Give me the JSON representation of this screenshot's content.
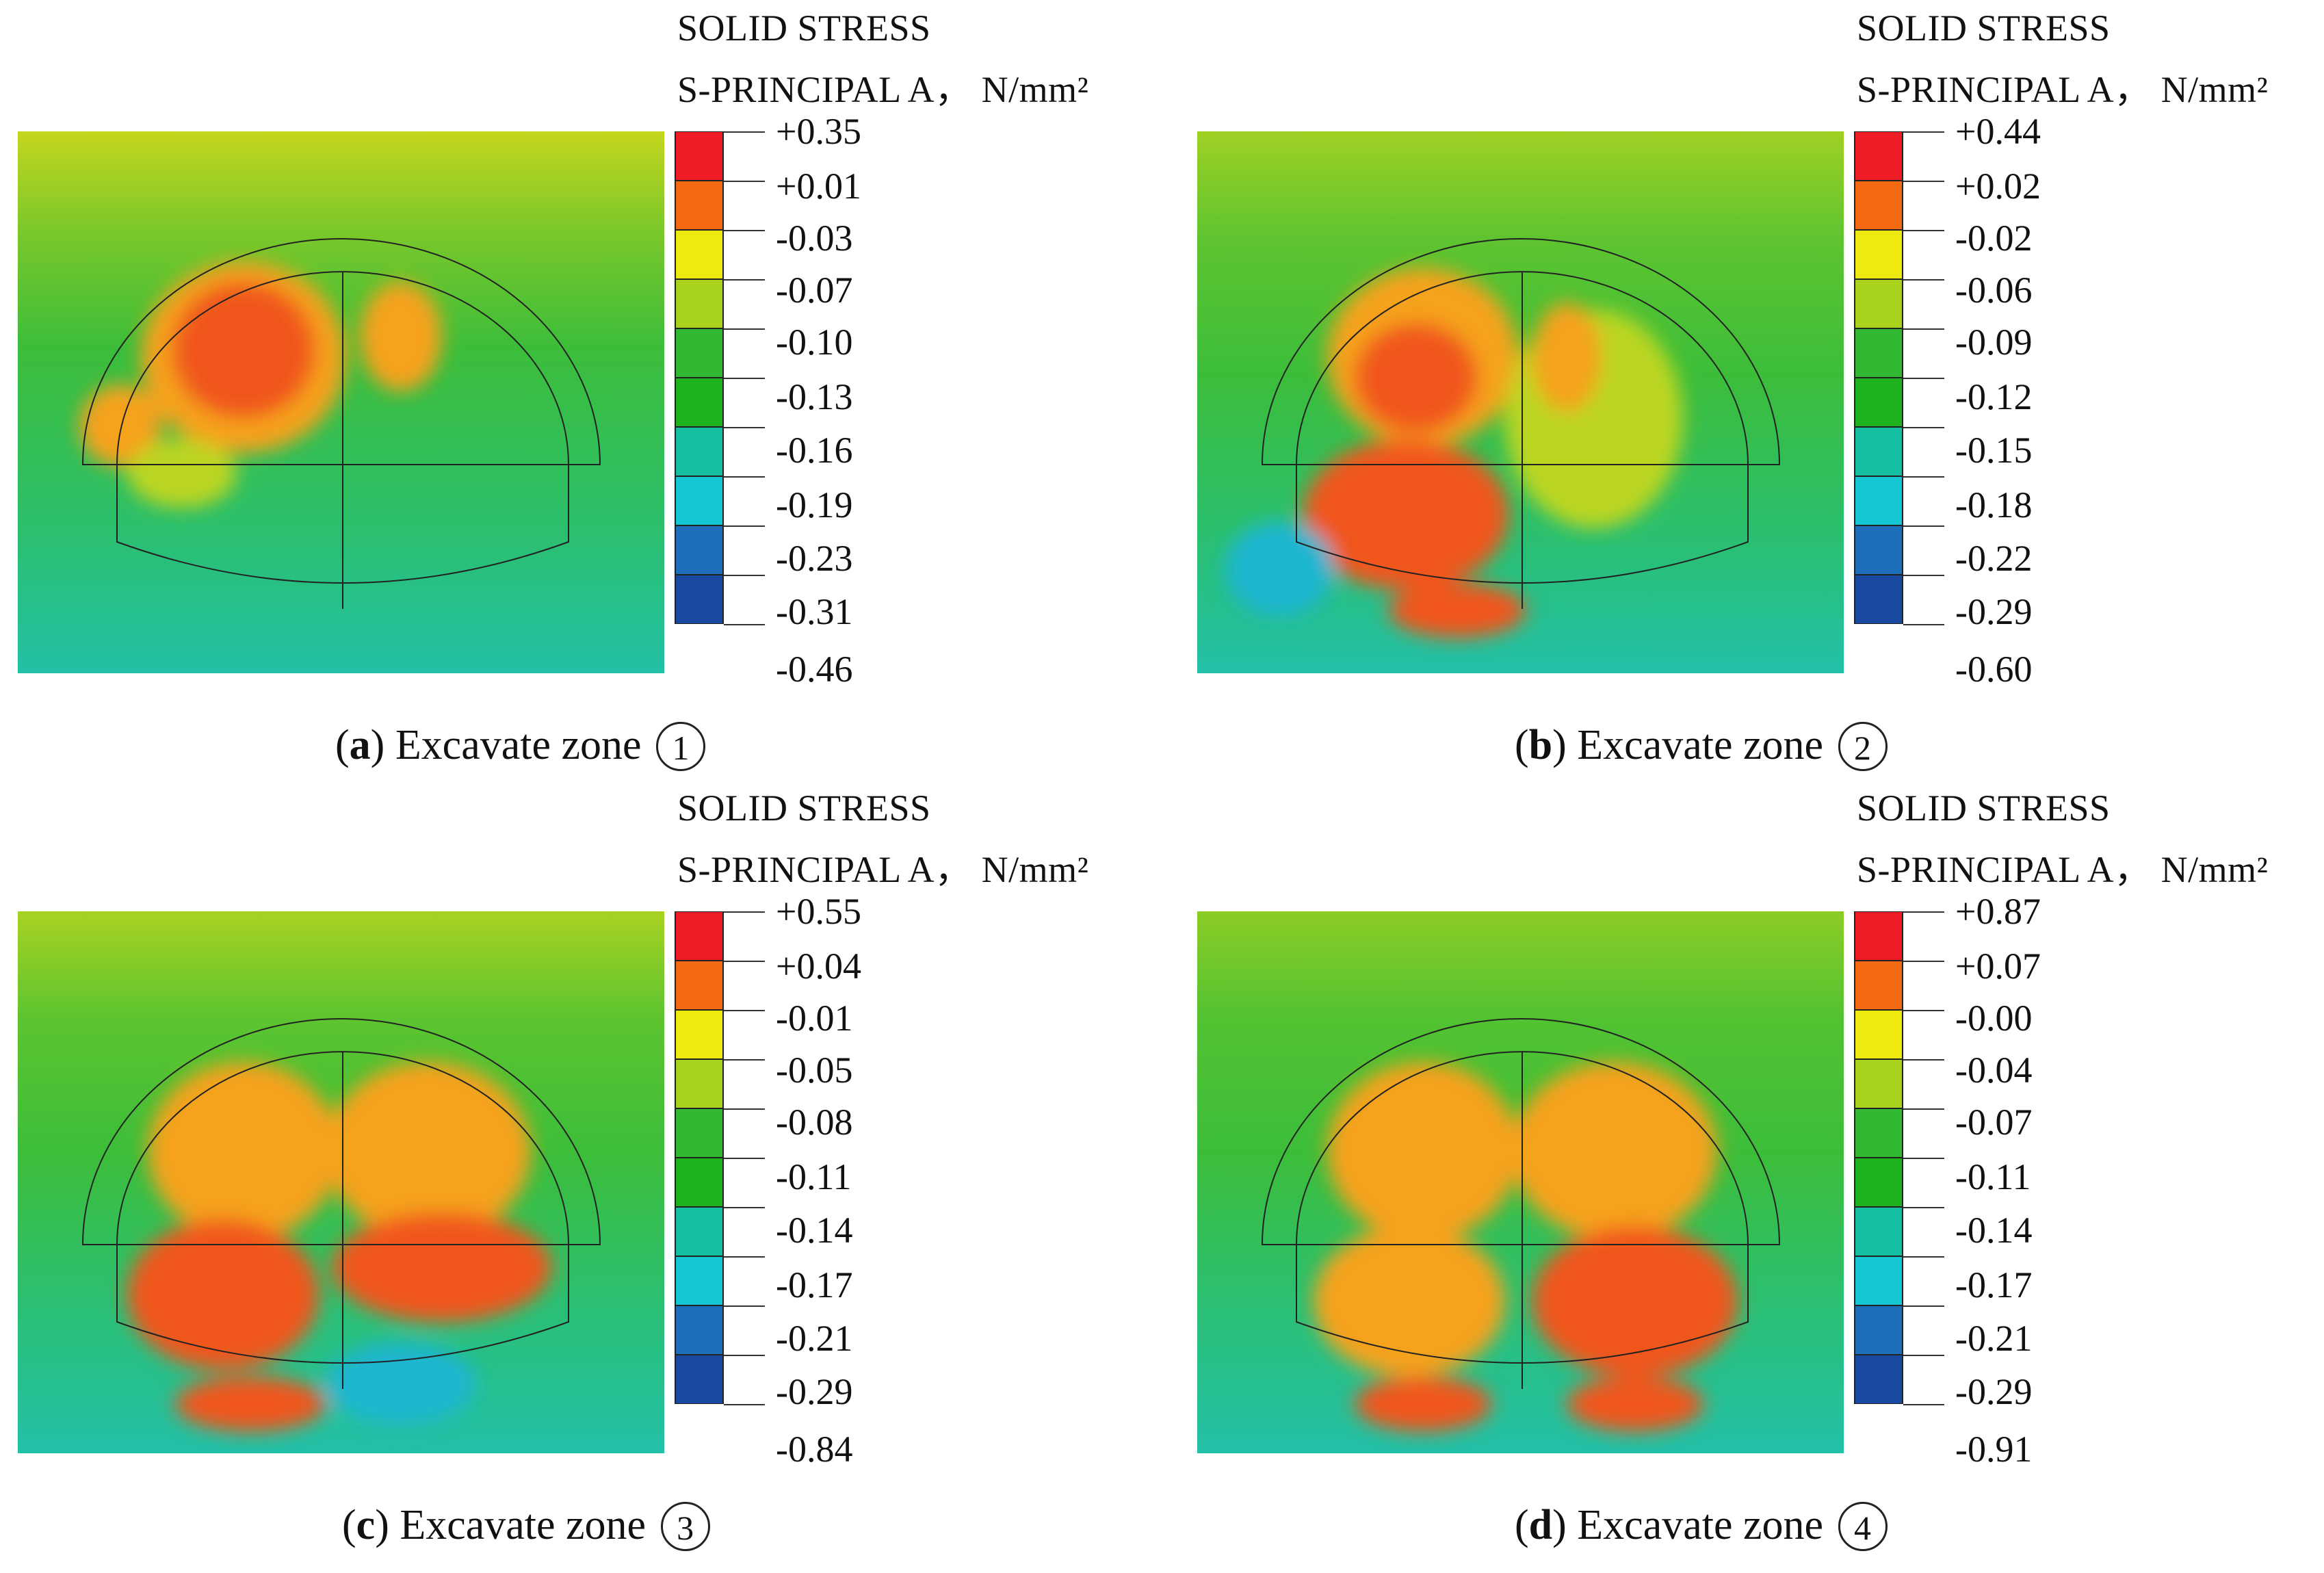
{
  "panels": [
    {
      "id": "a",
      "legend_title_1": "SOLID STRESS",
      "legend_title_2": "S-PRINCIPAL A， N/mm²",
      "legend_values": [
        "+0.35",
        "+0.01",
        "-0.03",
        "-0.07",
        "-0.10",
        "-0.13",
        "-0.16",
        "-0.19",
        "-0.23",
        "-0.31",
        "-0.46"
      ],
      "caption_paren_open": "(",
      "caption_letter": "a",
      "caption_paren_close": ")",
      "caption_text": " Excavate zone ",
      "caption_zone": "1"
    },
    {
      "id": "b",
      "legend_title_1": "SOLID STRESS",
      "legend_title_2": "S-PRINCIPAL A， N/mm²",
      "legend_values": [
        "+0.44",
        "+0.02",
        "-0.02",
        "-0.06",
        "-0.09",
        "-0.12",
        "-0.15",
        "-0.18",
        "-0.22",
        "-0.29",
        "-0.60"
      ],
      "caption_paren_open": "(",
      "caption_letter": "b",
      "caption_paren_close": ")",
      "caption_text": " Excavate zone ",
      "caption_zone": "2"
    },
    {
      "id": "c",
      "legend_title_1": "SOLID STRESS",
      "legend_title_2": "S-PRINCIPAL A， N/mm²",
      "legend_values": [
        "+0.55",
        "+0.04",
        "-0.01",
        "-0.05",
        "-0.08",
        "-0.11",
        "-0.14",
        "-0.17",
        "-0.21",
        "-0.29",
        "-0.84"
      ],
      "caption_paren_open": "(",
      "caption_letter": "c",
      "caption_paren_close": ")",
      "caption_text": " Excavate zone ",
      "caption_zone": "3"
    },
    {
      "id": "d",
      "legend_title_1": "SOLID STRESS",
      "legend_title_2": "S-PRINCIPAL A， N/mm²",
      "legend_values": [
        "+0.87",
        "+0.07",
        "-0.00",
        "-0.04",
        "-0.07",
        "-0.11",
        "-0.14",
        "-0.17",
        "-0.21",
        "-0.29",
        "-0.91"
      ],
      "caption_paren_open": "(",
      "caption_letter": "d",
      "caption_paren_close": ")",
      "caption_text": " Excavate zone ",
      "caption_zone": "4"
    }
  ],
  "legend_colors": [
    "#ee1c25",
    "#f46a12",
    "#eeea10",
    "#a8d21c",
    "#33b834",
    "#1fb21f",
    "#15bfa2",
    "#16c6d2",
    "#1c6fb8",
    "#1849a0"
  ],
  "field_colors": {
    "top": "#bcd620",
    "mid": "#3cbd3a",
    "bottom": "#23c0a2",
    "hot": "#f0561a",
    "warm": "#f5a21e",
    "cool": "#1bb6d0",
    "cold": "#1b5fb0"
  }
}
